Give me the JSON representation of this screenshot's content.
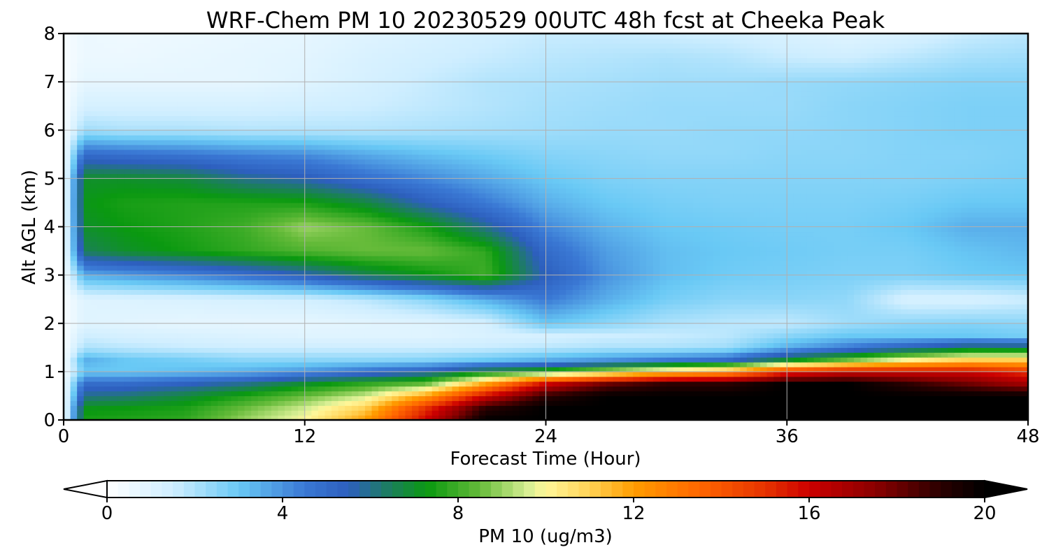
{
  "chart_data": {
    "type": "heatmap",
    "title": "WRF-Chem PM 10  20230529 00UTC 48h fcst at Cheeka Peak",
    "xlabel": "Forecast Time (Hour)",
    "ylabel": "Alt AGL (km)",
    "xlim": [
      0,
      48
    ],
    "ylim": [
      0,
      8
    ],
    "xticks": [
      0,
      12,
      24,
      36,
      48
    ],
    "yticks": [
      0,
      1,
      2,
      3,
      4,
      5,
      6,
      7,
      8
    ],
    "grid": true,
    "x_hours": [
      0,
      1,
      3,
      6,
      9,
      12,
      15,
      18,
      21,
      24,
      27,
      30,
      33,
      36,
      39,
      42,
      45,
      48
    ],
    "y_km": [
      0,
      0.25,
      0.5,
      0.75,
      1.0,
      1.25,
      1.5,
      1.75,
      2.0,
      2.5,
      3.0,
      3.5,
      4.0,
      4.5,
      5.0,
      5.5,
      6.0,
      6.5,
      7.0,
      7.5,
      8.0
    ],
    "values": [
      [
        0.2,
        7.5,
        7.6,
        7.8,
        9.0,
        10.0,
        12.0,
        16.0,
        20.0,
        20.0,
        20.0,
        20.0,
        20.0,
        20.0,
        20.0,
        20.0,
        20.0,
        20.0
      ],
      [
        0.2,
        7.2,
        7.3,
        7.5,
        8.5,
        9.5,
        11.0,
        15.0,
        19.0,
        20.0,
        20.0,
        20.0,
        20.0,
        20.0,
        20.0,
        20.0,
        20.0,
        20.0
      ],
      [
        0.2,
        6.0,
        6.2,
        6.8,
        7.6,
        8.5,
        9.5,
        12.0,
        16.0,
        19.0,
        20.0,
        20.0,
        20.0,
        20.0,
        20.0,
        20.0,
        20.0,
        20.0
      ],
      [
        0.2,
        5.0,
        5.0,
        5.4,
        6.0,
        7.0,
        7.8,
        8.5,
        12.0,
        16.0,
        18.0,
        19.0,
        19.0,
        20.0,
        20.0,
        19.0,
        18.0,
        17.0
      ],
      [
        0.2,
        3.0,
        3.0,
        3.2,
        3.5,
        4.0,
        4.8,
        5.5,
        7.0,
        8.0,
        9.5,
        11.0,
        12.0,
        15.0,
        16.0,
        16.0,
        16.0,
        15.0
      ],
      [
        0.2,
        3.5,
        3.0,
        2.8,
        2.5,
        2.5,
        2.5,
        2.6,
        3.0,
        3.5,
        4.0,
        4.5,
        5.0,
        7.0,
        8.5,
        10.0,
        11.0,
        11.0
      ],
      [
        0.2,
        2.0,
        1.8,
        1.6,
        1.5,
        1.5,
        1.5,
        1.5,
        1.6,
        1.8,
        2.0,
        2.0,
        2.2,
        3.5,
        4.5,
        5.5,
        6.5,
        6.5
      ],
      [
        0.2,
        1.5,
        1.3,
        1.2,
        1.1,
        1.0,
        1.0,
        1.0,
        1.2,
        1.3,
        1.5,
        1.6,
        1.8,
        2.5,
        3.0,
        3.0,
        3.0,
        2.8
      ],
      [
        0.2,
        1.0,
        0.9,
        0.8,
        0.8,
        0.8,
        0.9,
        1.0,
        1.3,
        3.0,
        2.5,
        2.0,
        1.8,
        1.7,
        2.2,
        2.5,
        2.6,
        2.5
      ],
      [
        0.2,
        1.0,
        1.1,
        1.2,
        1.3,
        1.4,
        1.8,
        2.5,
        3.5,
        4.5,
        3.5,
        2.8,
        2.5,
        2.5,
        2.4,
        1.2,
        1.2,
        1.5
      ],
      [
        0.2,
        3.5,
        3.8,
        4.2,
        4.8,
        5.5,
        6.5,
        7.2,
        8.0,
        5.5,
        4.0,
        3.2,
        2.9,
        2.8,
        2.7,
        2.7,
        2.9,
        3.0
      ],
      [
        0.2,
        6.5,
        7.0,
        7.4,
        7.8,
        8.2,
        8.5,
        8.5,
        7.8,
        5.0,
        3.8,
        3.2,
        3.0,
        2.9,
        2.8,
        2.8,
        3.1,
        3.3
      ],
      [
        0.2,
        7.0,
        7.3,
        7.6,
        8.0,
        9.0,
        8.5,
        7.5,
        6.0,
        4.2,
        3.4,
        3.0,
        2.9,
        2.8,
        2.8,
        3.0,
        3.5,
        3.5
      ],
      [
        0.2,
        7.2,
        7.5,
        7.6,
        7.6,
        7.5,
        6.8,
        5.5,
        4.5,
        3.5,
        3.0,
        2.8,
        2.7,
        2.7,
        2.7,
        2.8,
        3.0,
        3.0
      ],
      [
        0.2,
        7.0,
        7.0,
        6.8,
        6.0,
        5.6,
        4.8,
        4.2,
        3.6,
        3.0,
        2.7,
        2.6,
        2.6,
        2.6,
        2.6,
        2.6,
        2.7,
        2.8
      ],
      [
        0.2,
        5.0,
        4.8,
        4.6,
        4.3,
        4.1,
        3.6,
        3.2,
        2.9,
        2.6,
        2.5,
        2.4,
        2.4,
        2.5,
        2.5,
        2.6,
        2.6,
        2.7
      ],
      [
        0.2,
        2.2,
        2.0,
        2.0,
        1.9,
        1.9,
        1.9,
        2.0,
        2.1,
        2.2,
        2.3,
        2.3,
        2.4,
        2.4,
        2.5,
        2.6,
        2.7,
        2.7
      ],
      [
        0.2,
        1.3,
        1.3,
        1.3,
        1.3,
        1.4,
        1.5,
        1.7,
        1.9,
        2.1,
        2.2,
        2.3,
        2.3,
        2.3,
        2.5,
        2.6,
        2.7,
        2.7
      ],
      [
        0.2,
        0.8,
        0.8,
        0.8,
        0.8,
        1.0,
        1.3,
        1.6,
        1.9,
        2.0,
        2.1,
        2.2,
        2.2,
        2.3,
        2.4,
        2.5,
        2.6,
        2.6
      ],
      [
        0.2,
        0.6,
        0.6,
        0.7,
        0.8,
        0.9,
        1.2,
        1.4,
        1.6,
        1.8,
        1.9,
        2.0,
        1.9,
        1.6,
        1.5,
        1.8,
        2.1,
        2.2
      ],
      [
        0.2,
        0.6,
        0.5,
        0.6,
        0.7,
        0.8,
        1.0,
        1.2,
        1.4,
        1.6,
        1.6,
        1.5,
        1.4,
        1.2,
        1.0,
        1.2,
        1.6,
        1.8
      ]
    ],
    "colorbar": {
      "label": "PM 10  (ug/m3)",
      "min": 0,
      "max": 20,
      "ticks": [
        0,
        4,
        8,
        12,
        16,
        20
      ],
      "extend": "both",
      "stops": [
        {
          "v": 0,
          "color": "#ffffff"
        },
        {
          "v": 1.5,
          "color": "#cfeeff"
        },
        {
          "v": 3,
          "color": "#69c9f5"
        },
        {
          "v": 4.5,
          "color": "#3a78d4"
        },
        {
          "v": 5.5,
          "color": "#2d5fbe"
        },
        {
          "v": 6.3,
          "color": "#1f7a6b"
        },
        {
          "v": 7.3,
          "color": "#0a9910"
        },
        {
          "v": 8.5,
          "color": "#66bb3a"
        },
        {
          "v": 9.6,
          "color": "#d8ef94"
        },
        {
          "v": 10,
          "color": "#fff699"
        },
        {
          "v": 11,
          "color": "#ffd255"
        },
        {
          "v": 12,
          "color": "#ff9d00"
        },
        {
          "v": 13.5,
          "color": "#ff6600"
        },
        {
          "v": 15,
          "color": "#e63300"
        },
        {
          "v": 16,
          "color": "#cc0000"
        },
        {
          "v": 17.5,
          "color": "#8b0000"
        },
        {
          "v": 19,
          "color": "#2a0000"
        },
        {
          "v": 20,
          "color": "#000000"
        }
      ]
    }
  }
}
